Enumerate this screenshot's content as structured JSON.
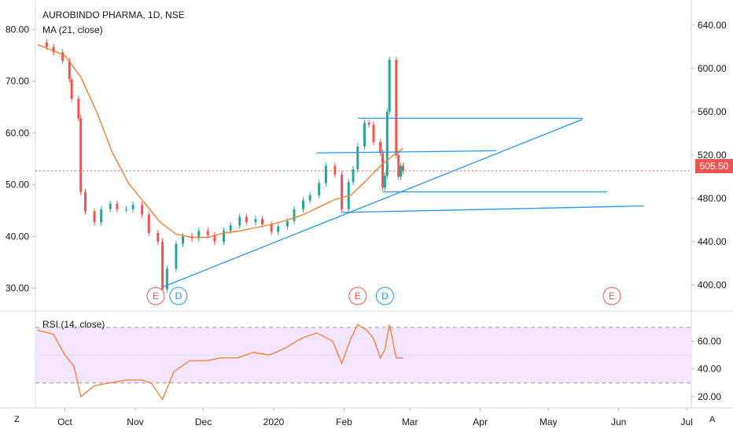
{
  "header": {
    "symbol_line": "AUROBINDO PHARMA, 1D, NSE",
    "indicator_line": "MA (21, close)"
  },
  "rsi_panel": {
    "label": "RSI (14, close)"
  },
  "corner_left": "Z",
  "corner_right": "A",
  "last_price_label": "505.50",
  "colors": {
    "up": "#26a69a",
    "down": "#ef5350",
    "ma": "#f57c2c",
    "trendline": "#2196f3",
    "rsi_line": "#f57c2c",
    "rsi_band": "#f3e5ff",
    "event_earnings": "#ef5350",
    "event_dividend": "#2196f3"
  },
  "chart_data": [
    {
      "type": "candlestick",
      "title": "AUROBINDO PHARMA, 1D, NSE",
      "left_axis": {
        "ticks": [
          "80.00",
          "70.00",
          "60.00",
          "50.00",
          "40.00",
          "30.00"
        ],
        "values": [
          80,
          70,
          60,
          50,
          40,
          30
        ]
      },
      "right_axis": {
        "ticks": [
          "640.00",
          "600.00",
          "560.00",
          "520.00",
          "480.00",
          "440.00",
          "400.00"
        ],
        "values": [
          640,
          600,
          560,
          520,
          480,
          440,
          400
        ]
      },
      "ylim_right": [
        376,
        656
      ],
      "x_ticks": [
        {
          "label": "Oct",
          "date": "2019-10-01"
        },
        {
          "label": "Nov",
          "date": "2019-11-01"
        },
        {
          "label": "Dec",
          "date": "2019-12-01"
        },
        {
          "label": "2020",
          "date": "2020-01-01"
        },
        {
          "label": "Feb",
          "date": "2020-02-01"
        },
        {
          "label": "Mar",
          "date": "2020-03-01"
        },
        {
          "label": "Apr",
          "date": "2020-04-01"
        },
        {
          "label": "May",
          "date": "2020-05-01"
        },
        {
          "label": "Jun",
          "date": "2020-06-01"
        },
        {
          "label": "Jul",
          "date": "2020-07-01"
        }
      ],
      "xlim": [
        "2019-09-18",
        "2020-07-03"
      ],
      "last_price": 505.5,
      "series": [
        {
          "name": "MA (21, close)",
          "type": "line"
        }
      ],
      "price_points": [
        [
          "2019-09-19",
          624
        ],
        [
          "2019-09-23",
          620
        ],
        [
          "2019-09-26",
          615
        ],
        [
          "2019-09-30",
          607
        ],
        [
          "2019-10-03",
          590
        ],
        [
          "2019-10-04",
          572
        ],
        [
          "2019-10-07",
          554
        ],
        [
          "2019-10-08",
          486
        ],
        [
          "2019-10-10",
          468
        ],
        [
          "2019-10-14",
          458
        ],
        [
          "2019-10-17",
          470
        ],
        [
          "2019-10-21",
          475
        ],
        [
          "2019-10-24",
          470
        ],
        [
          "2019-10-28",
          470
        ],
        [
          "2019-10-31",
          474
        ],
        [
          "2019-11-04",
          465
        ],
        [
          "2019-11-07",
          448
        ],
        [
          "2019-11-11",
          440
        ],
        [
          "2019-11-13",
          396
        ],
        [
          "2019-11-15",
          415
        ],
        [
          "2019-11-19",
          438
        ],
        [
          "2019-11-22",
          445
        ],
        [
          "2019-11-26",
          443
        ],
        [
          "2019-11-29",
          450
        ],
        [
          "2019-12-03",
          446
        ],
        [
          "2019-12-06",
          440
        ],
        [
          "2019-12-10",
          450
        ],
        [
          "2019-12-13",
          455
        ],
        [
          "2019-12-17",
          463
        ],
        [
          "2019-12-20",
          458
        ],
        [
          "2019-12-24",
          461
        ],
        [
          "2019-12-27",
          456
        ],
        [
          "2019-12-31",
          449
        ],
        [
          "2020-01-03",
          454
        ],
        [
          "2020-01-07",
          459
        ],
        [
          "2020-01-10",
          470
        ],
        [
          "2020-01-14",
          478
        ],
        [
          "2020-01-17",
          483
        ],
        [
          "2020-01-21",
          494
        ],
        [
          "2020-01-24",
          510
        ],
        [
          "2020-01-28",
          502
        ],
        [
          "2020-01-31",
          470
        ],
        [
          "2020-02-03",
          495
        ],
        [
          "2020-02-05",
          507
        ],
        [
          "2020-02-07",
          528
        ],
        [
          "2020-02-10",
          550
        ],
        [
          "2020-02-12",
          548
        ],
        [
          "2020-02-14",
          532
        ],
        [
          "2020-02-17",
          522
        ],
        [
          "2020-02-18",
          490
        ],
        [
          "2020-02-19",
          501
        ],
        [
          "2020-02-20",
          560
        ],
        [
          "2020-02-21",
          608
        ],
        [
          "2020-02-24",
          520
        ],
        [
          "2020-02-25",
          500
        ],
        [
          "2020-02-26",
          510
        ],
        [
          "2020-02-27",
          505.5
        ]
      ],
      "moving_average": [
        [
          "2019-09-19",
          622
        ],
        [
          "2019-10-01",
          612
        ],
        [
          "2019-10-08",
          592
        ],
        [
          "2019-10-15",
          560
        ],
        [
          "2019-10-22",
          522
        ],
        [
          "2019-10-29",
          494
        ],
        [
          "2019-11-05",
          476
        ],
        [
          "2019-11-12",
          458
        ],
        [
          "2019-11-19",
          447
        ],
        [
          "2019-11-26",
          444
        ],
        [
          "2019-12-03",
          444
        ],
        [
          "2019-12-10",
          448
        ],
        [
          "2019-12-17",
          450
        ],
        [
          "2019-12-24",
          453
        ],
        [
          "2019-12-31",
          456
        ],
        [
          "2020-01-07",
          460
        ],
        [
          "2020-01-14",
          465
        ],
        [
          "2020-01-21",
          472
        ],
        [
          "2020-01-28",
          479
        ],
        [
          "2020-02-04",
          483
        ],
        [
          "2020-02-11",
          497
        ],
        [
          "2020-02-18",
          512
        ],
        [
          "2020-02-24",
          522
        ],
        [
          "2020-02-27",
          526
        ]
      ],
      "trendlines": [
        {
          "from": [
            "2019-11-13",
            398
          ],
          "to": [
            "2020-05-16",
            553
          ]
        },
        {
          "from": [
            "2020-01-31",
            467
          ],
          "to": [
            "2020-06-12",
            473
          ]
        },
        {
          "from": [
            "2020-02-18",
            486
          ],
          "to": [
            "2020-05-27",
            486
          ]
        },
        {
          "from": [
            "2020-02-07",
            554
          ],
          "to": [
            "2020-05-16",
            554
          ]
        },
        {
          "from": [
            "2020-01-20",
            522
          ],
          "to": [
            "2020-04-08",
            524
          ]
        }
      ],
      "events": [
        {
          "label": "E",
          "date": "2019-11-10",
          "kind": "earnings"
        },
        {
          "label": "D",
          "date": "2019-11-20",
          "kind": "dividend"
        },
        {
          "label": "E",
          "date": "2020-02-07",
          "kind": "earnings"
        },
        {
          "label": "D",
          "date": "2020-02-19",
          "kind": "dividend"
        },
        {
          "label": "E",
          "date": "2020-05-29",
          "kind": "earnings"
        }
      ]
    },
    {
      "type": "line",
      "title": "RSI (14, close)",
      "right_axis": {
        "ticks": [
          "60.00",
          "40.00",
          "20.00"
        ],
        "values": [
          60,
          40,
          20
        ]
      },
      "ylim": [
        12,
        79
      ],
      "bands": [
        30,
        70
      ],
      "series": [
        {
          "name": "RSI (14, close)",
          "points": [
            [
              "2019-09-19",
              68
            ],
            [
              "2019-09-26",
              65
            ],
            [
              "2019-10-01",
              50
            ],
            [
              "2019-10-05",
              42
            ],
            [
              "2019-10-08",
              20
            ],
            [
              "2019-10-14",
              28
            ],
            [
              "2019-10-21",
              30
            ],
            [
              "2019-10-28",
              32
            ],
            [
              "2019-11-04",
              32
            ],
            [
              "2019-11-08",
              30
            ],
            [
              "2019-11-13",
              18
            ],
            [
              "2019-11-18",
              38
            ],
            [
              "2019-11-25",
              46
            ],
            [
              "2019-12-02",
              46
            ],
            [
              "2019-12-09",
              48
            ],
            [
              "2019-12-16",
              48
            ],
            [
              "2019-12-23",
              52
            ],
            [
              "2019-12-30",
              50
            ],
            [
              "2020-01-06",
              55
            ],
            [
              "2020-01-13",
              62
            ],
            [
              "2020-01-20",
              66
            ],
            [
              "2020-01-27",
              60
            ],
            [
              "2020-01-31",
              44
            ],
            [
              "2020-02-04",
              62
            ],
            [
              "2020-02-07",
              72
            ],
            [
              "2020-02-11",
              68
            ],
            [
              "2020-02-14",
              62
            ],
            [
              "2020-02-17",
              48
            ],
            [
              "2020-02-19",
              54
            ],
            [
              "2020-02-21",
              72
            ],
            [
              "2020-02-24",
              48
            ],
            [
              "2020-02-27",
              48
            ]
          ]
        }
      ]
    }
  ]
}
